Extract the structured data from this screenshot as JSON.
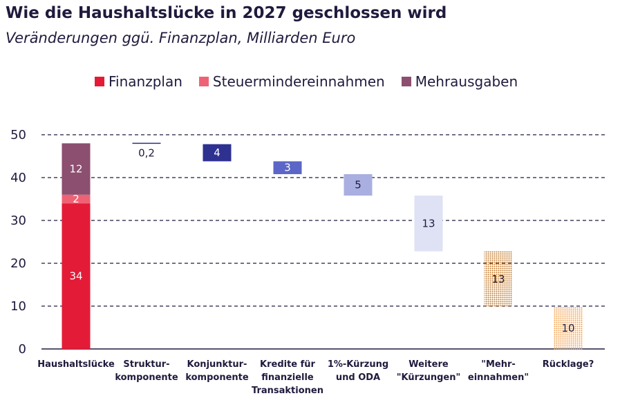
{
  "chart_data": {
    "type": "bar",
    "title": "Wie die Haushaltslücke in 2027 geschlossen wird",
    "subtitle": "Veränderungen ggü. Finanzplan, Milliarden Euro",
    "ylim": [
      0,
      50
    ],
    "yticks": [
      "0",
      "10",
      "20",
      "30",
      "40",
      "50"
    ],
    "grid": true,
    "legend_position": "top",
    "legend": [
      {
        "name": "Finanzplan",
        "color": "#e31b37"
      },
      {
        "name": "Steuermindereinnahmen",
        "color": "#ef6275"
      },
      {
        "name": "Mehrausgaben",
        "color": "#8c4f6f"
      }
    ],
    "categories": [
      [
        "Haushaltslücke"
      ],
      [
        "Struktur-",
        "komponente"
      ],
      [
        "Konjunktur-",
        "komponente"
      ],
      [
        "Kredite für",
        "finanzielle",
        "Transaktionen"
      ],
      [
        "1%-Kürzung",
        "und ODA"
      ],
      [
        "Weitere",
        "\"Kürzungen\""
      ],
      [
        "\"Mehr-",
        "einnahmen\""
      ],
      [
        "Rücklage?"
      ]
    ],
    "total_bar": [
      {
        "name": "Finanzplan",
        "value": 34,
        "label": "34",
        "color": "#e31b37",
        "text_color": "#ffffff"
      },
      {
        "name": "Steuermindereinnahmen",
        "value": 2,
        "label": "2",
        "color": "#ef6275",
        "text_color": "#ffffff"
      },
      {
        "name": "Mehrausgaben",
        "value": 12,
        "label": "12",
        "color": "#8c4f6f",
        "text_color": "#ffffff"
      }
    ],
    "steps": [
      {
        "value": 0.2,
        "label": "0,2",
        "color": "#2b2e7a",
        "text_color": "#1f1a3d",
        "style": "line"
      },
      {
        "value": 4,
        "label": "4",
        "color": "#2e3190",
        "text_color": "#ffffff",
        "style": "solid"
      },
      {
        "value": 3,
        "label": "3",
        "color": "#5b66c8",
        "text_color": "#ffffff",
        "style": "solid"
      },
      {
        "value": 5,
        "label": "5",
        "color": "#a9afe0",
        "text_color": "#1f1a3d",
        "style": "solid"
      },
      {
        "value": 13,
        "label": "13",
        "color": "#dfe1f5",
        "text_color": "#1f1a3d",
        "style": "solid"
      },
      {
        "value": 13,
        "label": "13",
        "color": "#c27a2a",
        "text_color": "#1f1a3d",
        "style": "dotted"
      },
      {
        "value": 10,
        "label": "10",
        "color": "#f2a04a",
        "text_color": "#1f1a3d",
        "style": "dotted"
      }
    ]
  }
}
